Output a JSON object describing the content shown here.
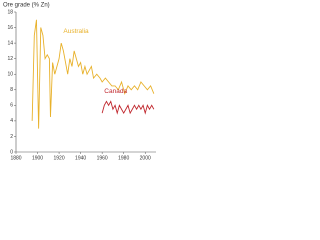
{
  "chart_data": {
    "type": "line",
    "title": "Ore grade (% Zn)",
    "xlim": [
      1880,
      2010
    ],
    "xticks": [
      1880,
      1900,
      1920,
      1940,
      1960,
      1980,
      2000
    ],
    "ylim": [
      0,
      18
    ],
    "yticks": [
      0,
      2,
      4,
      6,
      8,
      10,
      12,
      14,
      16,
      18
    ],
    "series": [
      {
        "name": "Australia",
        "color": "#e8b12a",
        "x": [
          1895,
          1897,
          1899,
          1901,
          1903,
          1905,
          1907,
          1909,
          1911,
          1912,
          1914,
          1916,
          1918,
          1920,
          1922,
          1924,
          1926,
          1928,
          1930,
          1932,
          1934,
          1936,
          1938,
          1940,
          1942,
          1944,
          1946,
          1948,
          1950,
          1952,
          1955,
          1958,
          1960,
          1963,
          1966,
          1969,
          1972,
          1975,
          1978,
          1981,
          1984,
          1987,
          1990,
          1993,
          1996,
          1999,
          2002,
          2005,
          2008
        ],
        "values": [
          4,
          15,
          17,
          3,
          16,
          15,
          12,
          12.5,
          12,
          4.5,
          11.5,
          10,
          11,
          12,
          14,
          13,
          11.5,
          10,
          12,
          11,
          13,
          12,
          11,
          11.5,
          10,
          11,
          10,
          10.5,
          11,
          9.5,
          10,
          9.5,
          9,
          9.5,
          9,
          8.5,
          8.5,
          8,
          9,
          7.5,
          8.5,
          8,
          8.5,
          8,
          9,
          8.5,
          8,
          8.5,
          7.5
        ]
      },
      {
        "name": "Canada",
        "color": "#c0272d",
        "x": [
          1960,
          1962,
          1964,
          1966,
          1968,
          1970,
          1972,
          1974,
          1976,
          1978,
          1980,
          1982,
          1984,
          1986,
          1988,
          1990,
          1992,
          1994,
          1996,
          1998,
          2000,
          2002,
          2004,
          2006,
          2008
        ],
        "values": [
          5,
          6,
          6.5,
          6,
          6.5,
          5.5,
          6,
          5,
          6,
          5.5,
          5,
          5.5,
          6,
          5,
          5.5,
          6,
          5.5,
          6,
          5.5,
          6,
          5,
          6,
          5.5,
          6,
          5.5
        ]
      }
    ]
  }
}
